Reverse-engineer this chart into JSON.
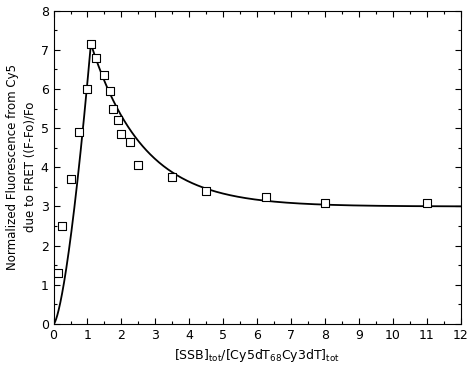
{
  "scatter_x": [
    0.12,
    0.25,
    0.5,
    0.75,
    1.0,
    1.1,
    1.25,
    1.5,
    1.65,
    1.75,
    1.9,
    2.0,
    2.25,
    2.5,
    3.5,
    4.5,
    6.25,
    8.0,
    11.0
  ],
  "scatter_y": [
    1.3,
    2.5,
    3.7,
    4.9,
    6.0,
    7.15,
    6.8,
    6.35,
    5.95,
    5.5,
    5.2,
    4.85,
    4.65,
    4.05,
    3.75,
    3.4,
    3.25,
    3.1,
    3.1
  ],
  "xlim": [
    0,
    12
  ],
  "ylim": [
    0,
    8
  ],
  "xticks": [
    0,
    1,
    2,
    3,
    4,
    5,
    6,
    7,
    8,
    9,
    10,
    11,
    12
  ],
  "yticks": [
    0,
    1,
    2,
    3,
    4,
    5,
    6,
    7,
    8
  ],
  "ylabel_line1": "Normalized Fluorescence from Cy5",
  "ylabel_line2": "due to FRET ((F-Fo)/Fo",
  "line_color": "black",
  "marker_size": 28,
  "marker_facecolor": "white",
  "marker_edgecolor": "black",
  "background_color": "white",
  "peak_x": 1.1,
  "peak_y": 7.15,
  "asymptote": 3.0,
  "rise_exp": 1.5,
  "decay_rate": 0.65,
  "linewidth": 1.3
}
